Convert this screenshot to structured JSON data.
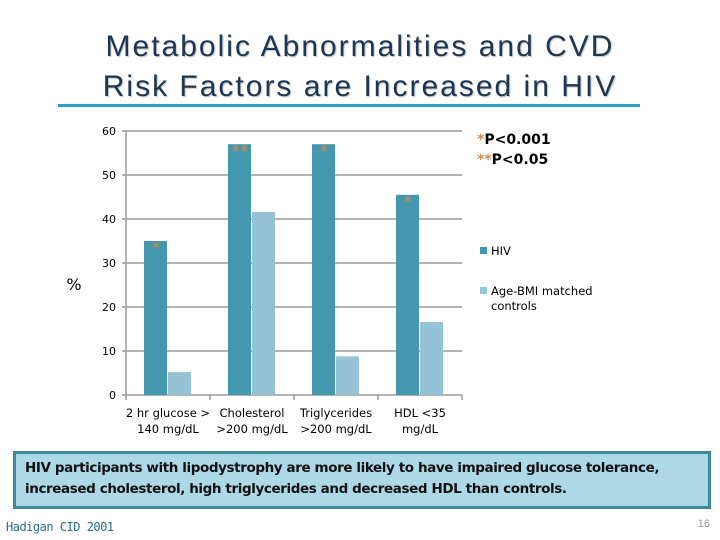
{
  "slide": {
    "title_line1": "Metabolic Abnormalities and CVD",
    "title_line2": "Risk Factors are Increased in HIV",
    "note": "HIV participants with lipodystrophy are more likely to have impaired glucose tolerance, increased cholesterol, high triglycerides and decreased HDL than controls.",
    "citation": "Hadigan  CID 2001",
    "page_number": "16"
  },
  "chart_data": {
    "type": "bar",
    "ylabel": "%",
    "ylim": [
      0,
      60
    ],
    "yticks": [
      "0",
      "10",
      "20",
      "30",
      "40",
      "50",
      "60"
    ],
    "grid": true,
    "legend_placement": "right",
    "categories": [
      [
        "2 hr glucose >",
        "140 mg/dL"
      ],
      [
        "Cholesterol",
        ">200 mg/dL"
      ],
      [
        "Triglycerides",
        ">200 mg/dL"
      ],
      [
        "HDL <35",
        "mg/dL"
      ]
    ],
    "series": [
      {
        "name": "HIV",
        "color": "#4397ae",
        "values": [
          35,
          57,
          57,
          45.5
        ]
      },
      {
        "name": "Age-BMI matched controls",
        "color": "#95c3d5",
        "values": [
          5.2,
          41.6,
          8.8,
          16.6
        ]
      }
    ],
    "legend_lines": [
      [
        "HIV"
      ],
      [
        "Age-BMI matched",
        "controls"
      ]
    ],
    "significance": [
      "*",
      "**",
      "*",
      "*"
    ],
    "significance_color": "#d08a4a",
    "footnotes": [
      {
        "mark": "*",
        "text": "P<0.001"
      },
      {
        "mark": "**",
        "text": "P<0.05"
      }
    ]
  }
}
